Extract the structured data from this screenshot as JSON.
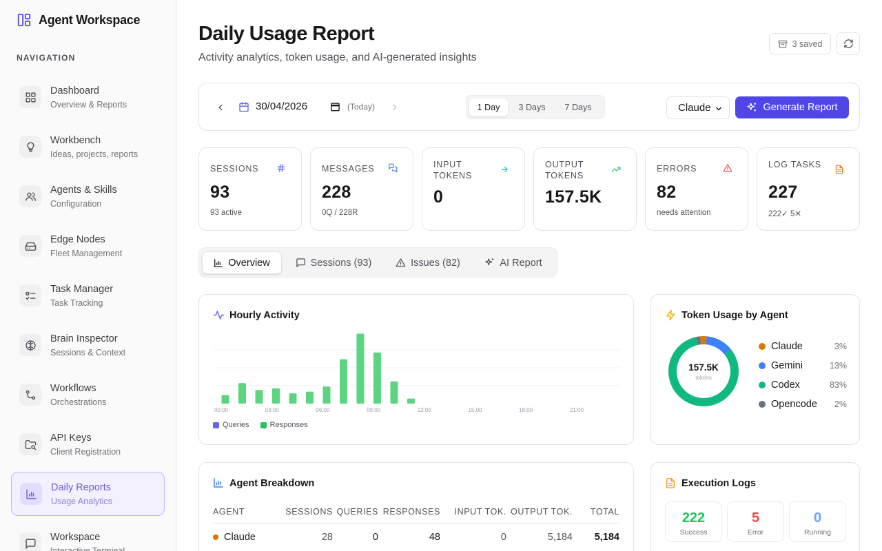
{
  "brand": {
    "title": "Agent Workspace"
  },
  "nav": {
    "heading": "NAVIGATION",
    "items": [
      {
        "label": "Dashboard",
        "sub": "Overview & Reports",
        "icon": "dashboard-icon"
      },
      {
        "label": "Workbench",
        "sub": "Ideas, projects, reports",
        "icon": "lightbulb-icon"
      },
      {
        "label": "Agents & Skills",
        "sub": "Configuration",
        "icon": "users-icon"
      },
      {
        "label": "Edge Nodes",
        "sub": "Fleet Management",
        "icon": "hard-drive-icon"
      },
      {
        "label": "Task Manager",
        "sub": "Task Tracking",
        "icon": "checklist-icon"
      },
      {
        "label": "Brain Inspector",
        "sub": "Sessions & Context",
        "icon": "brain-icon"
      },
      {
        "label": "Workflows",
        "sub": "Orchestrations",
        "icon": "workflow-icon"
      },
      {
        "label": "API Keys",
        "sub": "Client Registration",
        "icon": "key-folder-icon"
      },
      {
        "label": "Daily Reports",
        "sub": "Usage Analytics",
        "icon": "bar-chart-icon",
        "active": true
      },
      {
        "label": "Workspace",
        "sub": "Interactive Terminal",
        "icon": "message-icon"
      }
    ]
  },
  "header": {
    "title": "Daily Usage Report",
    "subtitle": "Activity analytics, token usage, and AI-generated insights",
    "saved_label": "3 saved"
  },
  "toolbar": {
    "date": "30/04/2026",
    "today_label": "(Today)",
    "ranges": [
      "1 Day",
      "3 Days",
      "7 Days"
    ],
    "active_range": "1 Day",
    "agent_selected": "Claude",
    "generate_label": "Generate Report"
  },
  "stats": [
    {
      "label": "SESSIONS",
      "value": "93",
      "sub": "93 active",
      "icon": "hash-icon",
      "color": "#6366f1"
    },
    {
      "label": "MESSAGES",
      "value": "228",
      "sub": "0Q / 228R",
      "icon": "messages-icon",
      "color": "#3b82f6"
    },
    {
      "label": "INPUT TOKENS",
      "value": "0",
      "sub": "",
      "icon": "arrow-right-icon",
      "color": "#06b6d4"
    },
    {
      "label": "OUTPUT TOKENS",
      "value": "157.5K",
      "sub": "",
      "icon": "trending-up-icon",
      "color": "#22c55e"
    },
    {
      "label": "ERRORS",
      "value": "82",
      "sub": "needs attention",
      "icon": "alert-triangle-icon",
      "color": "#ef4444"
    },
    {
      "label": "LOG TASKS",
      "value": "227",
      "sub": "222✓ 5✕",
      "icon": "file-text-icon",
      "color": "#f97316"
    }
  ],
  "tabs": [
    {
      "label": "Overview",
      "icon": "bar-chart-icon",
      "active": true
    },
    {
      "label": "Sessions (93)",
      "icon": "message-icon"
    },
    {
      "label": "Issues (82)",
      "icon": "alert-triangle-icon"
    },
    {
      "label": "AI Report",
      "icon": "sparkles-icon"
    }
  ],
  "hourly": {
    "title": "Hourly Activity",
    "legend": [
      "Queries",
      "Responses"
    ]
  },
  "token_usage": {
    "title": "Token Usage by Agent",
    "center_value": "157.5K",
    "center_unit": "tokens",
    "agents": [
      {
        "name": "Claude",
        "pct": "3%",
        "color": "#d97706"
      },
      {
        "name": "Gemini",
        "pct": "13%",
        "color": "#3b82f6"
      },
      {
        "name": "Codex",
        "pct": "83%",
        "color": "#10b981"
      },
      {
        "name": "Opencode",
        "pct": "2%",
        "color": "#6b7280"
      }
    ]
  },
  "breakdown": {
    "title": "Agent Breakdown",
    "columns": [
      "AGENT",
      "SESSIONS",
      "QUERIES",
      "RESPONSES",
      "INPUT TOK.",
      "OUTPUT TOK.",
      "TOTAL"
    ],
    "rows": [
      {
        "agent": "Claude",
        "sessions": "28",
        "queries": "0",
        "responses": "48",
        "input": "0",
        "output": "5,184",
        "total": "5,184",
        "color": "#d97706"
      }
    ]
  },
  "exec_logs": {
    "title": "Execution Logs",
    "items": [
      {
        "value": "222",
        "label": "Success",
        "color": "#22c55e"
      },
      {
        "value": "5",
        "label": "Error",
        "color": "#ef4444"
      },
      {
        "value": "0",
        "label": "Running",
        "color": "#60a5fa"
      }
    ]
  },
  "chart_data": [
    {
      "type": "bar",
      "title": "Hourly Activity",
      "xlabel": "",
      "ylabel": "",
      "x_tick_labels": [
        "00:00",
        "03:00",
        "06:00",
        "09:00",
        "12:00",
        "15:00",
        "18:00",
        "21:00"
      ],
      "categories": [
        "00",
        "01",
        "02",
        "03",
        "04",
        "05",
        "06",
        "07",
        "08",
        "09",
        "10",
        "11",
        "12",
        "13",
        "14",
        "15",
        "16",
        "17",
        "18",
        "19",
        "20",
        "21",
        "22",
        "23"
      ],
      "series": [
        {
          "name": "Queries",
          "color": "#6366f1",
          "values": [
            0,
            0,
            0,
            0,
            0,
            0,
            0,
            0,
            0,
            0,
            0,
            0,
            0,
            0,
            0,
            0,
            0,
            0,
            0,
            0,
            0,
            0,
            0,
            0
          ]
        },
        {
          "name": "Responses",
          "color": "#22c55e",
          "values": [
            5,
            12,
            8,
            9,
            6,
            7,
            10,
            26,
            41,
            30,
            13,
            3,
            0,
            0,
            0,
            0,
            0,
            0,
            0,
            0,
            0,
            0,
            0,
            0
          ]
        }
      ],
      "ylim": [
        0,
        42
      ],
      "grid": true,
      "legend": "bottom-left"
    },
    {
      "type": "pie",
      "title": "Token Usage by Agent",
      "categories": [
        "Claude",
        "Gemini",
        "Codex",
        "Opencode"
      ],
      "values": [
        3,
        13,
        83,
        2
      ],
      "colors": [
        "#d97706",
        "#3b82f6",
        "#10b981",
        "#6b7280"
      ],
      "legend": "right"
    }
  ]
}
